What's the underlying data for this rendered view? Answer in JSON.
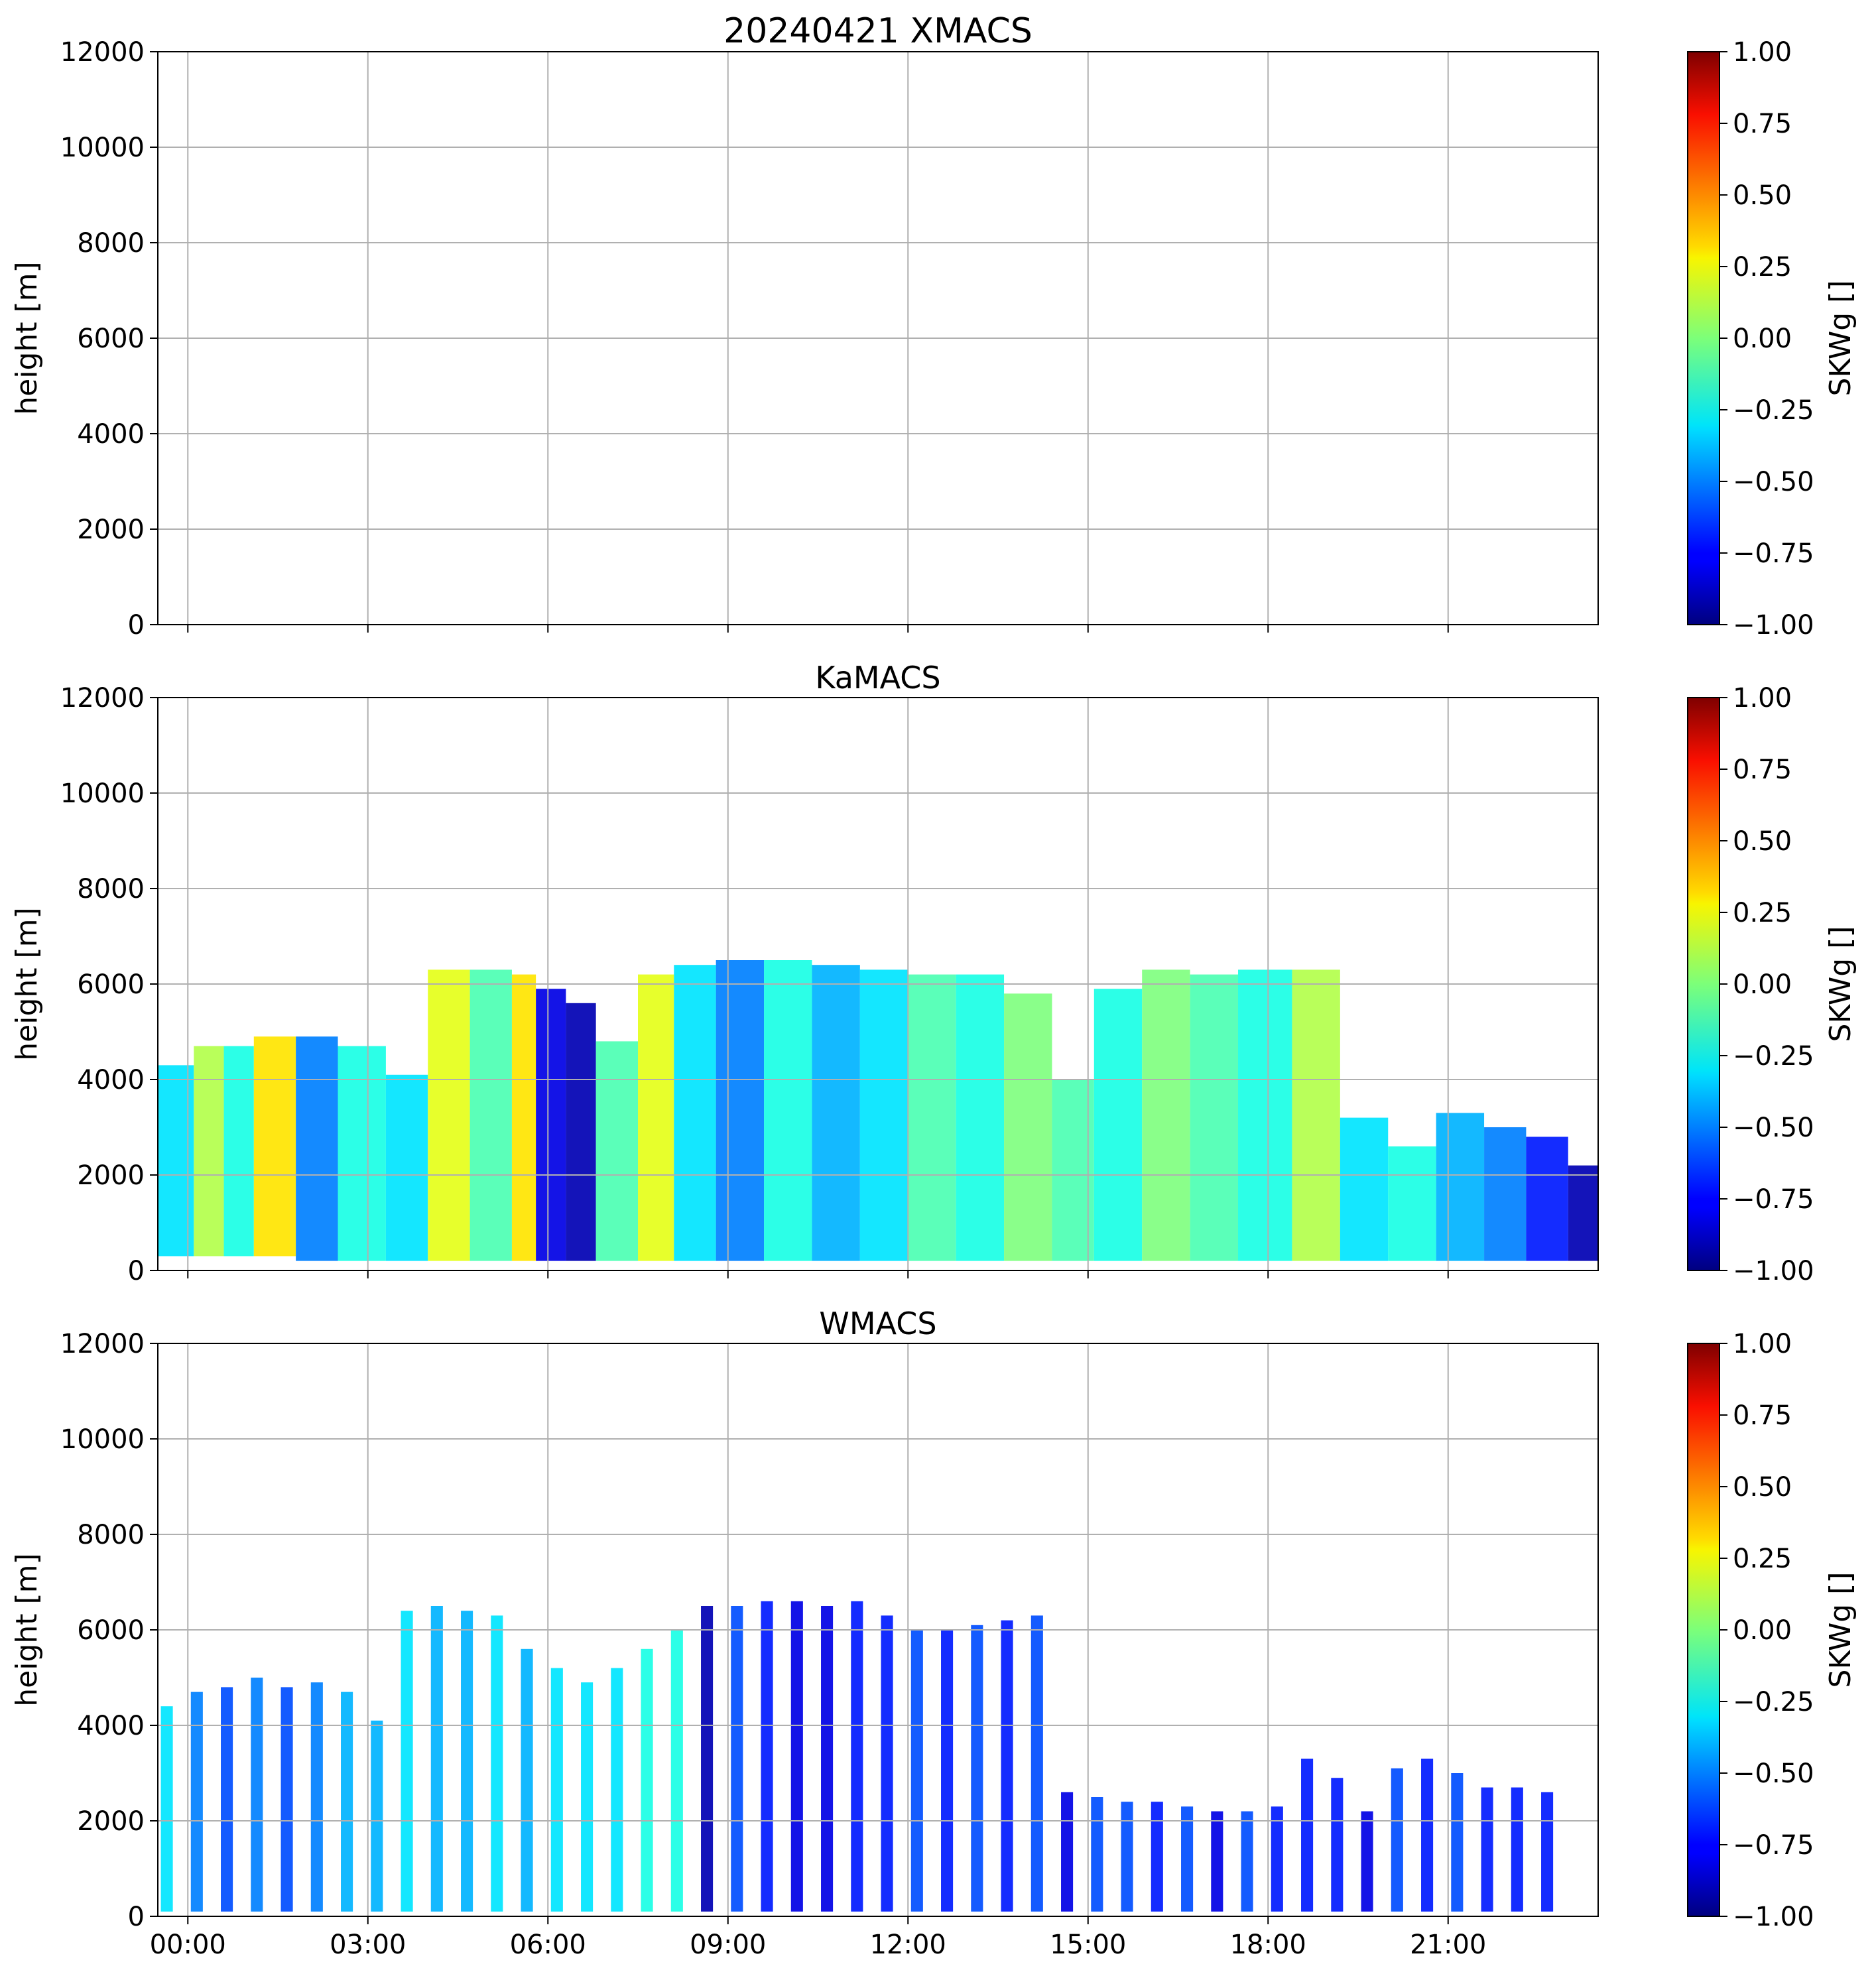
{
  "figure": {
    "title_prefix": "20240421"
  },
  "chart_data": [
    {
      "type": "heatmap",
      "title": "20240421 XMACS",
      "xlabel": "",
      "ylabel": "height [m]",
      "x_range": [
        "00:00",
        "24:00"
      ],
      "xticks": [
        "00:00",
        "03:00",
        "06:00",
        "09:00",
        "12:00",
        "15:00",
        "18:00",
        "21:00"
      ],
      "show_xtick_labels": false,
      "ylim": [
        0,
        12000
      ],
      "yticks": [
        0,
        2000,
        4000,
        6000,
        8000,
        10000,
        12000
      ],
      "grid": true,
      "colorbar": {
        "label": "SKWg []",
        "colormap": "jet",
        "range": [
          -1.0,
          1.0
        ],
        "ticks": [
          "1.00",
          "0.75",
          "0.50",
          "0.25",
          "0.00",
          "−0.25",
          "−0.50",
          "−0.75",
          "−1.00"
        ]
      },
      "cells": []
    },
    {
      "type": "heatmap",
      "title": "KaMACS",
      "xlabel": "",
      "ylabel": "height [m]",
      "x_range": [
        "00:00",
        "24:00"
      ],
      "xticks": [
        "00:00",
        "03:00",
        "06:00",
        "09:00",
        "12:00",
        "15:00",
        "18:00",
        "21:00"
      ],
      "show_xtick_labels": false,
      "ylim": [
        0,
        12000
      ],
      "yticks": [
        0,
        2000,
        4000,
        6000,
        8000,
        10000,
        12000
      ],
      "grid": true,
      "colorbar": {
        "label": "SKWg []",
        "colormap": "jet",
        "range": [
          -1.0,
          1.0
        ],
        "ticks": [
          "1.00",
          "0.75",
          "0.50",
          "0.25",
          "0.00",
          "−0.25",
          "−0.50",
          "−0.75",
          "−1.00"
        ]
      },
      "cells_note": "approximate cloud echo blocks: [start_hour, end_hour, bottom_m, top_m, SKWg]",
      "cells": [
        [
          0.0,
          0.6,
          300,
          4300,
          -0.3
        ],
        [
          0.6,
          1.1,
          300,
          4700,
          0.1
        ],
        [
          1.1,
          1.6,
          300,
          4700,
          -0.2
        ],
        [
          1.6,
          2.3,
          300,
          4900,
          0.3
        ],
        [
          2.3,
          3.0,
          200,
          4900,
          -0.5
        ],
        [
          3.0,
          3.8,
          200,
          4700,
          -0.2
        ],
        [
          3.8,
          4.5,
          200,
          4100,
          -0.3
        ],
        [
          4.5,
          5.2,
          200,
          6300,
          0.2
        ],
        [
          5.2,
          5.9,
          200,
          6300,
          -0.1
        ],
        [
          5.9,
          6.3,
          200,
          6200,
          0.3
        ],
        [
          6.3,
          6.8,
          200,
          5900,
          -0.8
        ],
        [
          6.8,
          7.3,
          200,
          5600,
          -0.9
        ],
        [
          7.3,
          8.0,
          200,
          4800,
          -0.1
        ],
        [
          8.0,
          8.6,
          200,
          6200,
          0.2
        ],
        [
          8.6,
          9.3,
          200,
          6400,
          -0.3
        ],
        [
          9.3,
          10.1,
          200,
          6500,
          -0.5
        ],
        [
          10.1,
          10.9,
          200,
          6500,
          -0.2
        ],
        [
          10.9,
          11.7,
          200,
          6400,
          -0.4
        ],
        [
          11.7,
          12.5,
          200,
          6300,
          -0.3
        ],
        [
          12.5,
          13.3,
          200,
          6200,
          -0.1
        ],
        [
          13.3,
          14.1,
          200,
          6200,
          -0.2
        ],
        [
          14.1,
          14.9,
          200,
          5800,
          0.0
        ],
        [
          14.9,
          15.6,
          200,
          4000,
          -0.1
        ],
        [
          15.6,
          16.4,
          200,
          5900,
          -0.2
        ],
        [
          16.4,
          17.2,
          200,
          6300,
          0.0
        ],
        [
          17.2,
          18.0,
          200,
          6200,
          -0.1
        ],
        [
          18.0,
          18.9,
          200,
          6300,
          -0.2
        ],
        [
          18.9,
          19.7,
          200,
          6300,
          0.1
        ],
        [
          19.7,
          20.5,
          200,
          3200,
          -0.3
        ],
        [
          20.5,
          21.3,
          200,
          2600,
          -0.2
        ],
        [
          21.3,
          22.1,
          200,
          3300,
          -0.4
        ],
        [
          22.1,
          22.8,
          200,
          3000,
          -0.5
        ],
        [
          22.8,
          23.5,
          200,
          2800,
          -0.7
        ],
        [
          23.5,
          24.0,
          200,
          2200,
          -0.9
        ]
      ]
    },
    {
      "type": "heatmap",
      "title": "WMACS",
      "xlabel": "",
      "ylabel": "height [m]",
      "x_range": [
        "00:00",
        "24:00"
      ],
      "xticks": [
        "00:00",
        "03:00",
        "06:00",
        "09:00",
        "12:00",
        "15:00",
        "18:00",
        "21:00"
      ],
      "show_xtick_labels": true,
      "ylim": [
        0,
        12000
      ],
      "yticks": [
        0,
        2000,
        4000,
        6000,
        8000,
        10000,
        12000
      ],
      "grid": true,
      "colorbar": {
        "label": "SKWg []",
        "colormap": "jet",
        "range": [
          -1.0,
          1.0
        ],
        "ticks": [
          "1.00",
          "0.75",
          "0.50",
          "0.25",
          "0.00",
          "−0.25",
          "−0.50",
          "−0.75",
          "−1.00"
        ]
      },
      "cells_note": "approximate vertical echo stripes: [start_hour, end_hour, bottom_m, top_m, SKWg]",
      "cells": [
        [
          0.05,
          0.25,
          100,
          4400,
          -0.3
        ],
        [
          0.55,
          0.75,
          100,
          4700,
          -0.5
        ],
        [
          1.05,
          1.25,
          100,
          4800,
          -0.6
        ],
        [
          1.55,
          1.75,
          100,
          5000,
          -0.5
        ],
        [
          2.05,
          2.25,
          100,
          4800,
          -0.6
        ],
        [
          2.55,
          2.75,
          100,
          4900,
          -0.5
        ],
        [
          3.05,
          3.25,
          100,
          4700,
          -0.4
        ],
        [
          3.55,
          3.75,
          100,
          4100,
          -0.4
        ],
        [
          4.05,
          4.25,
          100,
          6400,
          -0.3
        ],
        [
          4.55,
          4.75,
          100,
          6500,
          -0.4
        ],
        [
          5.05,
          5.25,
          100,
          6400,
          -0.4
        ],
        [
          5.55,
          5.75,
          100,
          6300,
          -0.3
        ],
        [
          6.05,
          6.25,
          100,
          5600,
          -0.4
        ],
        [
          6.55,
          6.75,
          100,
          5200,
          -0.3
        ],
        [
          7.05,
          7.25,
          100,
          4900,
          -0.3
        ],
        [
          7.55,
          7.75,
          100,
          5200,
          -0.3
        ],
        [
          8.05,
          8.25,
          100,
          5600,
          -0.2
        ],
        [
          8.55,
          8.75,
          100,
          6000,
          -0.2
        ],
        [
          9.05,
          9.25,
          100,
          6500,
          -0.9
        ],
        [
          9.55,
          9.75,
          100,
          6500,
          -0.6
        ],
        [
          10.05,
          10.25,
          100,
          6600,
          -0.7
        ],
        [
          10.55,
          10.75,
          100,
          6600,
          -0.8
        ],
        [
          11.05,
          11.25,
          100,
          6500,
          -0.8
        ],
        [
          11.55,
          11.75,
          100,
          6600,
          -0.7
        ],
        [
          12.05,
          12.25,
          100,
          6300,
          -0.7
        ],
        [
          12.55,
          12.75,
          100,
          6000,
          -0.6
        ],
        [
          13.05,
          13.25,
          100,
          6000,
          -0.7
        ],
        [
          13.55,
          13.75,
          100,
          6100,
          -0.6
        ],
        [
          14.05,
          14.25,
          100,
          6200,
          -0.7
        ],
        [
          14.55,
          14.75,
          100,
          6300,
          -0.6
        ],
        [
          15.05,
          15.25,
          100,
          2600,
          -0.8
        ],
        [
          15.55,
          15.75,
          100,
          2500,
          -0.6
        ],
        [
          16.05,
          16.25,
          100,
          2400,
          -0.6
        ],
        [
          16.55,
          16.75,
          100,
          2400,
          -0.7
        ],
        [
          17.05,
          17.25,
          100,
          2300,
          -0.6
        ],
        [
          17.55,
          17.75,
          100,
          2200,
          -0.8
        ],
        [
          18.05,
          18.25,
          100,
          2200,
          -0.6
        ],
        [
          18.55,
          18.75,
          100,
          2300,
          -0.7
        ],
        [
          19.05,
          19.25,
          100,
          3300,
          -0.7
        ],
        [
          19.55,
          19.75,
          100,
          2900,
          -0.7
        ],
        [
          20.05,
          20.25,
          100,
          2200,
          -0.8
        ],
        [
          20.55,
          20.75,
          100,
          3100,
          -0.6
        ],
        [
          21.05,
          21.25,
          100,
          3300,
          -0.7
        ],
        [
          21.55,
          21.75,
          100,
          3000,
          -0.6
        ],
        [
          22.05,
          22.25,
          100,
          2700,
          -0.7
        ],
        [
          22.55,
          22.75,
          100,
          2700,
          -0.7
        ],
        [
          23.05,
          23.25,
          100,
          2600,
          -0.7
        ]
      ]
    }
  ]
}
